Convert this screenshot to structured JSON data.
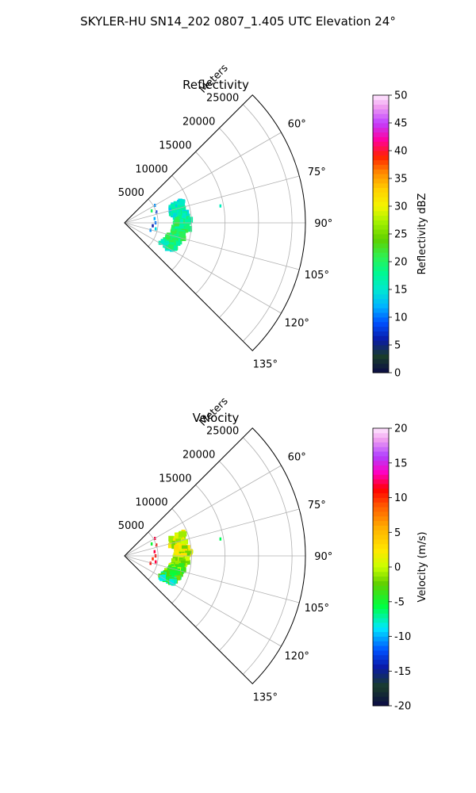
{
  "figure": {
    "title": "SKYLER-HU  SN14_202  0807_1.405 UTC Elevation 24°"
  },
  "chart_data": [
    {
      "type": "polar-sector-ppi",
      "title": "Reflectivity",
      "range_label": "Meters",
      "theta_range_deg": [
        45,
        135
      ],
      "theta_zero": "north",
      "theta_direction": "clockwise",
      "theta_ticks": [
        "60°",
        "75°",
        "90°",
        "105°",
        "120°",
        "135°"
      ],
      "theta_tick_values": [
        60,
        75,
        90,
        105,
        120,
        135
      ],
      "r_max": 27000,
      "r_ticks": [
        "5000",
        "10000",
        "15000",
        "20000",
        "25000"
      ],
      "r_tick_values": [
        5000,
        10000,
        15000,
        20000,
        25000
      ],
      "grid": true,
      "colorbar": {
        "label": "Reflectivity dBZ",
        "min": 0,
        "max": 50,
        "ticks": [
          "0",
          "5",
          "10",
          "15",
          "20",
          "25",
          "30",
          "35",
          "40",
          "45",
          "50"
        ],
        "tick_values": [
          0,
          5,
          10,
          15,
          20,
          25,
          30,
          35,
          40,
          45,
          50
        ],
        "colormap": "pyart_NWSRef"
      },
      "echo_band": {
        "points": [
          {
            "az": 68,
            "r": 8500,
            "value": 14
          },
          {
            "az": 74,
            "r": 8000,
            "value": 15
          },
          {
            "az": 80,
            "r": 8200,
            "value": 16
          },
          {
            "az": 86,
            "r": 8800,
            "value": 18
          },
          {
            "az": 92,
            "r": 8600,
            "value": 19
          },
          {
            "az": 98,
            "r": 8300,
            "value": 19
          },
          {
            "az": 104,
            "r": 8000,
            "value": 20
          },
          {
            "az": 110,
            "r": 7700,
            "value": 19
          },
          {
            "az": 116,
            "r": 7400,
            "value": 18
          },
          {
            "az": 120,
            "r": 7200,
            "value": 17
          }
        ],
        "width_m": 2200
      },
      "scatter_points": [
        {
          "az": 60,
          "r": 5200,
          "value": 11
        },
        {
          "az": 66,
          "r": 4400,
          "value": 20
        },
        {
          "az": 71,
          "r": 5000,
          "value": 8
        },
        {
          "az": 82,
          "r": 4500,
          "value": 12
        },
        {
          "az": 90,
          "r": 4600,
          "value": 10
        },
        {
          "az": 96,
          "r": 4200,
          "value": 6
        },
        {
          "az": 101,
          "r": 4700,
          "value": 14
        },
        {
          "az": 106,
          "r": 4000,
          "value": 11
        },
        {
          "az": 80,
          "r": 14500,
          "value": 16
        }
      ]
    },
    {
      "type": "polar-sector-ppi",
      "title": "Velocity",
      "range_label": "Meters",
      "theta_range_deg": [
        45,
        135
      ],
      "theta_zero": "north",
      "theta_direction": "clockwise",
      "theta_ticks": [
        "60°",
        "75°",
        "90°",
        "105°",
        "120°",
        "135°"
      ],
      "theta_tick_values": [
        60,
        75,
        90,
        105,
        120,
        135
      ],
      "r_max": 27000,
      "r_ticks": [
        "5000",
        "10000",
        "15000",
        "20000",
        "25000"
      ],
      "r_tick_values": [
        5000,
        10000,
        15000,
        20000,
        25000
      ],
      "grid": true,
      "colorbar": {
        "label": "Velocity (m/s)",
        "min": -20,
        "max": 20,
        "ticks": [
          "-20",
          "-15",
          "-10",
          "-5",
          "0",
          "5",
          "10",
          "15",
          "20"
        ],
        "tick_values": [
          -20,
          -15,
          -10,
          -5,
          0,
          5,
          10,
          15,
          20
        ],
        "colormap": "pyart_NWSVel"
      },
      "echo_band": {
        "points": [
          {
            "az": 68,
            "r": 8500,
            "value": 2
          },
          {
            "az": 74,
            "r": 8000,
            "value": 1
          },
          {
            "az": 80,
            "r": 8200,
            "value": 1
          },
          {
            "az": 86,
            "r": 8800,
            "value": 0
          },
          {
            "az": 92,
            "r": 8600,
            "value": 0
          },
          {
            "az": 98,
            "r": 8300,
            "value": -1
          },
          {
            "az": 104,
            "r": 8000,
            "value": -2
          },
          {
            "az": 110,
            "r": 7700,
            "value": -4
          },
          {
            "az": 116,
            "r": 7400,
            "value": -5
          },
          {
            "az": 120,
            "r": 7200,
            "value": -6
          }
        ],
        "width_m": 2200
      },
      "scatter_points": [
        {
          "az": 60,
          "r": 5200,
          "value": 12
        },
        {
          "az": 66,
          "r": 4400,
          "value": -5
        },
        {
          "az": 71,
          "r": 5000,
          "value": 11
        },
        {
          "az": 82,
          "r": 4500,
          "value": 12
        },
        {
          "az": 90,
          "r": 4600,
          "value": 11
        },
        {
          "az": 96,
          "r": 4200,
          "value": 10
        },
        {
          "az": 101,
          "r": 4700,
          "value": 12
        },
        {
          "az": 106,
          "r": 4000,
          "value": 11
        },
        {
          "az": 80,
          "r": 14500,
          "value": -6
        }
      ]
    }
  ]
}
